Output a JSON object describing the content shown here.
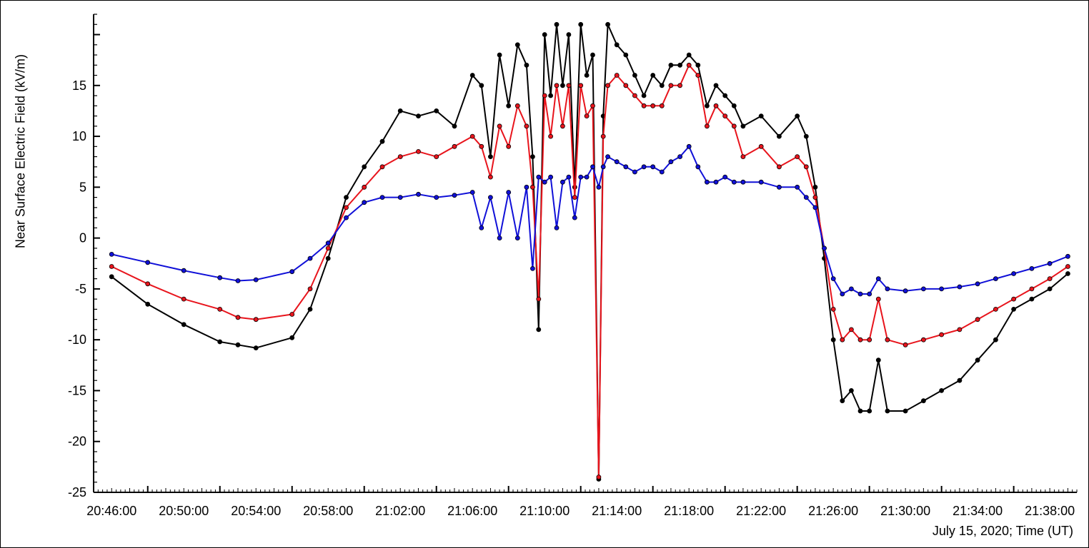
{
  "chart_data": {
    "type": "line",
    "title": "",
    "ylabel": "Near Surface Electric Field (kV/m)",
    "xlabel": "July 15, 2020; Time (UT)",
    "ylim": [
      -25,
      22
    ],
    "xlim": [
      "20:45:00",
      "21:39:30"
    ],
    "y_ticks": [
      -25,
      -20,
      -15,
      -10,
      -5,
      0,
      5,
      10,
      15
    ],
    "x_ticks": [
      "20:46:00",
      "20:50:00",
      "20:54:00",
      "20:58:00",
      "21:02:00",
      "21:06:00",
      "21:10:00",
      "21:14:00",
      "21:18:00",
      "21:22:00",
      "21:26:00",
      "21:30:00",
      "21:34:00",
      "21:38:00"
    ],
    "grid": false,
    "legend": "none",
    "x": [
      "20:46:00",
      "20:48:00",
      "20:50:00",
      "20:52:00",
      "20:53:00",
      "20:54:00",
      "20:56:00",
      "20:57:00",
      "20:58:00",
      "20:59:00",
      "21:00:00",
      "21:01:00",
      "21:02:00",
      "21:03:00",
      "21:04:00",
      "21:05:00",
      "21:06:00",
      "21:06:30",
      "21:07:00",
      "21:07:30",
      "21:08:00",
      "21:08:30",
      "21:09:00",
      "21:09:20",
      "21:09:40",
      "21:10:00",
      "21:10:20",
      "21:10:40",
      "21:11:00",
      "21:11:20",
      "21:11:40",
      "21:12:00",
      "21:12:20",
      "21:12:40",
      "21:13:00",
      "21:13:15",
      "21:13:30",
      "21:14:00",
      "21:14:30",
      "21:15:00",
      "21:15:30",
      "21:16:00",
      "21:16:30",
      "21:17:00",
      "21:17:30",
      "21:18:00",
      "21:18:30",
      "21:19:00",
      "21:19:30",
      "21:20:00",
      "21:20:30",
      "21:21:00",
      "21:22:00",
      "21:23:00",
      "21:24:00",
      "21:24:30",
      "21:25:00",
      "21:25:30",
      "21:26:00",
      "21:26:30",
      "21:27:00",
      "21:27:30",
      "21:28:00",
      "21:28:30",
      "21:29:00",
      "21:30:00",
      "21:31:00",
      "21:32:00",
      "21:33:00",
      "21:34:00",
      "21:35:00",
      "21:36:00",
      "21:37:00",
      "21:38:00",
      "21:39:00"
    ],
    "series": [
      {
        "color": "#000000",
        "values": [
          -3.8,
          -6.5,
          -8.5,
          -10.2,
          -10.5,
          -10.8,
          -9.8,
          -7,
          -2,
          4,
          7,
          9.5,
          12.5,
          12,
          12.5,
          11,
          16,
          15,
          8,
          18,
          13,
          19,
          17,
          8,
          -9,
          20,
          14,
          21,
          15,
          20,
          5,
          21,
          16,
          18,
          -23.7,
          12,
          21,
          19,
          18,
          16,
          14,
          16,
          15,
          17,
          17,
          18,
          17,
          13,
          15,
          14,
          13,
          11,
          12,
          10,
          12,
          10,
          5,
          -2,
          -10,
          -16,
          -15,
          -17,
          -17,
          -12,
          -17,
          -17,
          -16,
          -15,
          -14,
          -12,
          -10,
          -7,
          -6,
          -5,
          -3.5
        ]
      },
      {
        "color": "#e8141c",
        "values": [
          -2.8,
          -4.5,
          -6,
          -7,
          -7.8,
          -8,
          -7.5,
          -5,
          -1,
          3,
          5,
          7,
          8,
          8.5,
          8,
          9,
          10,
          9,
          6,
          11,
          9,
          13,
          11,
          5,
          -6,
          14,
          10,
          15,
          11,
          15,
          4,
          15,
          12,
          13,
          -23.5,
          10,
          15,
          16,
          15,
          14,
          13,
          13,
          13,
          15,
          15,
          17,
          16,
          11,
          13,
          12,
          11,
          8,
          9,
          7,
          8,
          7,
          4,
          -1,
          -7,
          -10,
          -9,
          -10,
          -10,
          -6,
          -10,
          -10.5,
          -10,
          -9.5,
          -9,
          -8,
          -7,
          -6,
          -5,
          -4,
          -2.8
        ]
      },
      {
        "color": "#1010d8",
        "values": [
          -1.6,
          -2.4,
          -3.2,
          -3.9,
          -4.2,
          -4.1,
          -3.3,
          -2,
          -0.5,
          2,
          3.5,
          4,
          4,
          4.3,
          4,
          4.2,
          4.5,
          1,
          4,
          0,
          4.5,
          0,
          5,
          -3,
          6,
          5.5,
          6,
          1,
          5.5,
          6,
          2,
          6,
          6,
          7,
          5,
          7,
          8,
          7.5,
          7,
          6.5,
          7,
          7,
          6.5,
          7.5,
          8,
          9,
          7,
          5.5,
          5.5,
          6,
          5.5,
          5.5,
          5.5,
          5,
          5,
          4,
          3,
          -1,
          -4,
          -5.5,
          -5,
          -5.5,
          -5.5,
          -4,
          -5,
          -5.2,
          -5,
          -5,
          -4.8,
          -4.5,
          -4,
          -3.5,
          -3,
          -2.5,
          -1.8
        ]
      }
    ]
  }
}
